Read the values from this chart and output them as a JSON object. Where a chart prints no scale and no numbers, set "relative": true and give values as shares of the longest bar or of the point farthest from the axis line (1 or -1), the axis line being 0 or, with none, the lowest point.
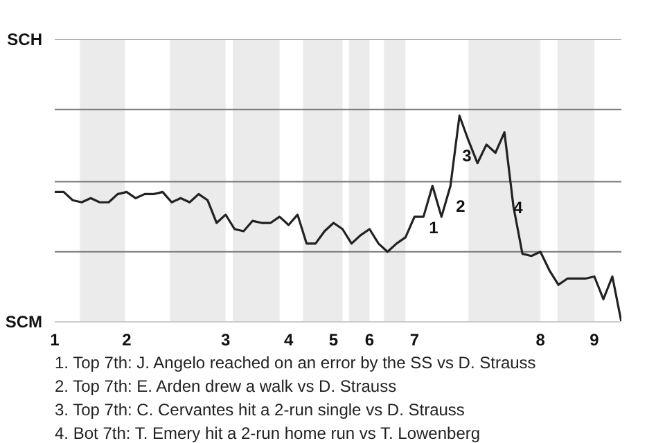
{
  "chart_data": {
    "type": "line",
    "relative": true,
    "categories": [
      "1",
      null,
      null,
      null,
      null,
      null,
      null,
      null,
      "2",
      null,
      null,
      null,
      null,
      null,
      null,
      null,
      null,
      null,
      null,
      "3",
      null,
      null,
      null,
      null,
      null,
      null,
      "4",
      null,
      null,
      null,
      null,
      "5",
      null,
      null,
      null,
      "6",
      null,
      null,
      null,
      null,
      "7",
      null,
      null,
      null,
      null,
      null,
      null,
      null,
      null,
      null,
      null,
      null,
      null,
      null,
      "8",
      null,
      null,
      null,
      null,
      null,
      "9",
      null,
      null,
      null
    ],
    "series": [
      {
        "color": "#222222",
        "values": [
          0.63,
          0.63,
          0.59,
          0.58,
          0.6,
          0.58,
          0.58,
          0.62,
          0.63,
          0.6,
          0.62,
          0.62,
          0.63,
          0.58,
          0.6,
          0.58,
          0.62,
          0.59,
          0.48,
          0.52,
          0.45,
          0.44,
          0.49,
          0.48,
          0.48,
          0.51,
          0.47,
          0.52,
          0.38,
          0.38,
          0.44,
          0.48,
          0.45,
          0.38,
          0.42,
          0.45,
          0.38,
          0.34,
          0.38,
          0.41,
          0.51,
          0.51,
          0.66,
          0.51,
          0.66,
          1,
          0.88,
          0.77,
          0.86,
          0.82,
          0.92,
          0.56,
          0.33,
          0.32,
          0.34,
          0.25,
          0.18,
          0.21,
          0.21,
          0.21,
          0.22,
          0.11,
          0.22,
          0
        ]
      }
    ],
    "line_style": "solid",
    "ref_lines": [
      {
        "axis": "y",
        "value": 0.34,
        "color": "#777777"
      },
      {
        "axis": "y",
        "value": 0.68,
        "color": "#777777"
      },
      {
        "axis": "y",
        "value": 1.03,
        "color": "#777777"
      },
      {
        "axis": "y",
        "value": 1.37,
        "color": "#777777"
      }
    ],
    "annotations": [
      "SCH",
      "SCM",
      {
        "text": "1",
        "y": 0.51
      },
      {
        "text": "2",
        "y": 0.66
      },
      {
        "text": "3",
        "y": 1
      },
      {
        "text": "4",
        "y": 0.56
      },
      "1. Top 7th: J. Angelo reached on an error by the SS vs D. Strauss",
      "2. Top 7th: E. Arden drew a walk vs D. Strauss",
      "3. Top 7th: C. Cervantes hit a 2-run single vs D. Strauss",
      "4. Bot 7th: T. Emery hit a 2-run home run vs T. Lowenberg"
    ]
  }
}
